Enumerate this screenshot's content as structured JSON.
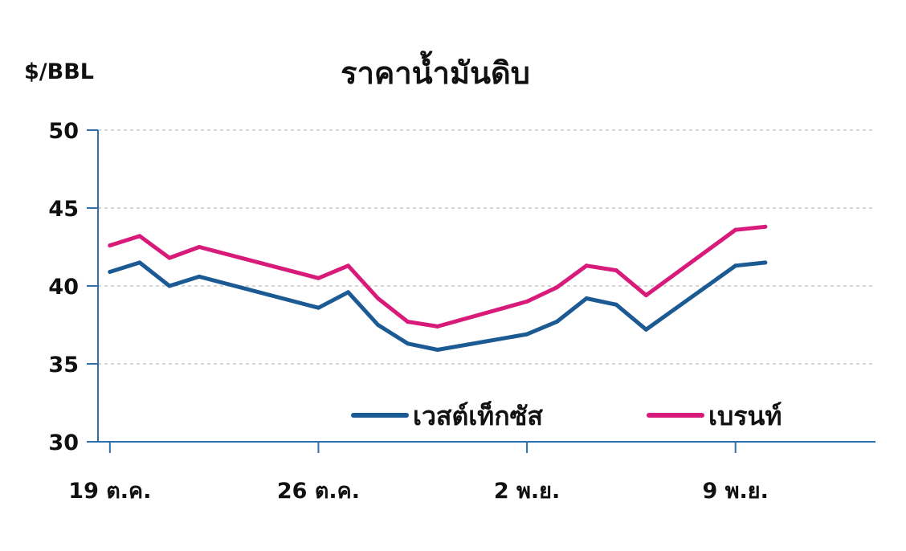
{
  "chart_data": {
    "type": "line",
    "title": "ราคาน้ำมันดิบ",
    "ylabel": "$/BBL",
    "ylim": [
      30,
      50
    ],
    "yticks": [
      30,
      35,
      40,
      45,
      50
    ],
    "x_tick_labels": [
      "19 ต.ค.",
      "26 ต.ค.",
      "2 พ.ย.",
      "9 พ.ย."
    ],
    "x_tick_days": [
      0,
      7,
      14,
      21
    ],
    "x_range_days": [
      -0.4,
      25.7
    ],
    "grid": true,
    "legend_position": "bottom-right",
    "x": [
      "2015-10-19",
      "2015-10-20",
      "2015-10-21",
      "2015-10-22",
      "2015-10-26",
      "2015-10-27",
      "2015-10-28",
      "2015-10-29",
      "2015-10-30",
      "2015-11-02",
      "2015-11-03",
      "2015-11-04",
      "2015-11-05",
      "2015-11-06",
      "2015-11-09",
      "2015-11-10"
    ],
    "series": [
      {
        "name": "เวสต์เท็กซัส",
        "color": "#1c5a94",
        "values": [
          40.9,
          41.5,
          40.0,
          40.6,
          38.6,
          39.6,
          37.5,
          36.3,
          35.9,
          36.9,
          37.7,
          39.2,
          38.8,
          37.2,
          41.3,
          41.5
        ]
      },
      {
        "name": "เบรนท์",
        "color": "#d81b7a",
        "values": [
          42.6,
          43.2,
          41.8,
          42.5,
          40.5,
          41.3,
          39.2,
          37.7,
          37.4,
          39.0,
          39.9,
          41.3,
          41.0,
          39.4,
          43.6,
          43.8
        ]
      }
    ]
  }
}
